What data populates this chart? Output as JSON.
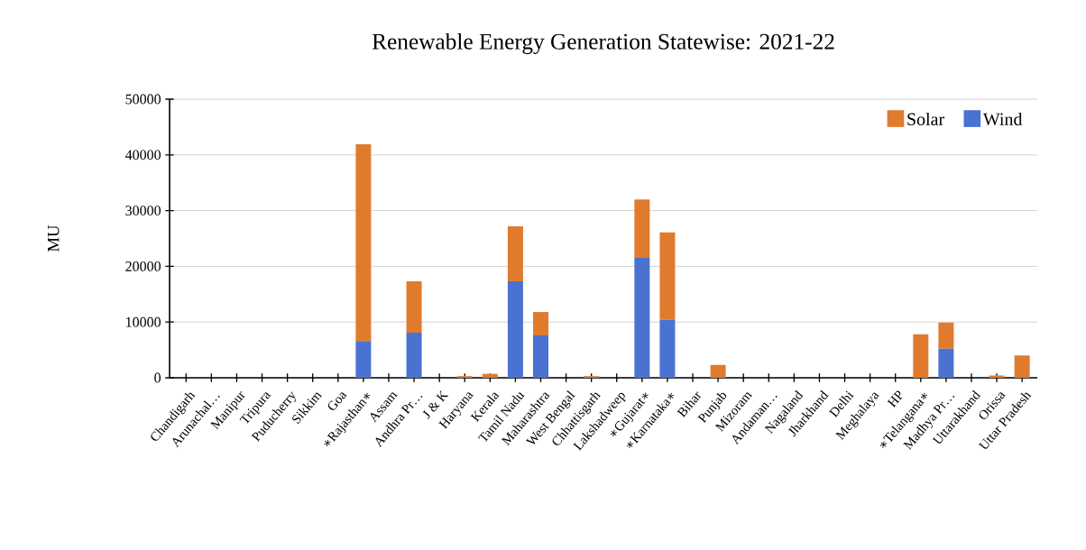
{
  "chart_data": {
    "type": "bar",
    "title": "Renewable Energy Generation Statewise: 2021-22",
    "ylabel": "MU",
    "categories": [
      "Chandigarh",
      "Arunachal…",
      "Manipur",
      "Tripura",
      "Puducherry",
      "Sikkim",
      "Goa",
      "∗Rajasthan∗",
      "Assam",
      "Andhra Pr…",
      "J & K",
      "Haryana",
      "Kerala",
      "Tamil Nadu",
      "Maharashtra",
      "West Bengal",
      "Chhattisgarh",
      "Lakshadweep",
      "∗Gujarat∗",
      "∗Karnataka∗",
      "Bihar",
      "Punjab",
      "Mizoram",
      "Andaman…",
      "Nagaland",
      "Jharkhand",
      "Delhi",
      "Meghalaya",
      "HP",
      "∗Telangana∗",
      "Madhya Pr…",
      "Uttarakhand",
      "Orissa",
      "Uttar Pradesh"
    ],
    "series": [
      {
        "name": "Wind",
        "color": "#4a72d0",
        "values": [
          0,
          0,
          0,
          0,
          0,
          0,
          0,
          6600,
          0,
          8100,
          0,
          0,
          0,
          17300,
          7600,
          0,
          0,
          0,
          21500,
          10400,
          0,
          0,
          0,
          0,
          0,
          0,
          0,
          0,
          0,
          0,
          5200,
          0,
          0,
          0
        ]
      },
      {
        "name": "Solar",
        "color": "#e07b2e",
        "values": [
          0,
          0,
          0,
          0,
          0,
          0,
          0,
          35300,
          0,
          9200,
          0,
          300,
          700,
          9900,
          4200,
          0,
          300,
          0,
          10500,
          15700,
          0,
          2300,
          0,
          0,
          0,
          0,
          0,
          0,
          0,
          7800,
          4700,
          0,
          400,
          4000
        ]
      }
    ],
    "stacked": true,
    "ylim": [
      0,
      50000
    ],
    "yticks": [
      0,
      10000,
      20000,
      30000,
      40000,
      50000
    ],
    "grid": "y",
    "legend": "top right"
  }
}
